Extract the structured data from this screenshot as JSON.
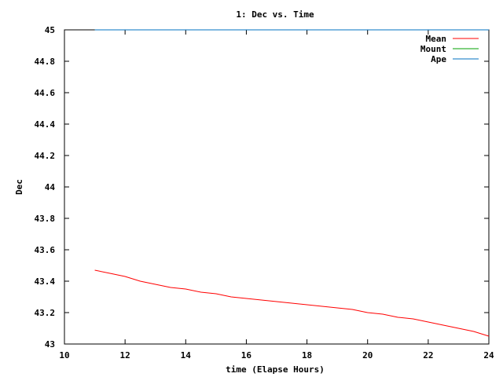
{
  "chart_data": {
    "type": "line",
    "title": "1: Dec vs. Time",
    "xlabel": "time (Elapse Hours)",
    "ylabel": "Dec",
    "xlim": [
      10,
      24
    ],
    "ylim": [
      43,
      45
    ],
    "x_ticks": [
      10,
      12,
      14,
      16,
      18,
      20,
      22,
      24
    ],
    "x_tick_labels": [
      "10",
      "12",
      "14",
      "16",
      "18",
      "20",
      "22",
      "24"
    ],
    "y_ticks": [
      43,
      43.2,
      43.4,
      43.6,
      43.8,
      44,
      44.2,
      44.4,
      44.6,
      44.8,
      45
    ],
    "y_tick_labels": [
      "43",
      "43.2",
      "43.4",
      "43.6",
      "43.8",
      "44",
      "44.2",
      "44.4",
      "44.6",
      "44.8",
      "45"
    ],
    "grid": false,
    "legend_position": "top-right",
    "series": [
      {
        "name": "Mean",
        "color": "#ff0000",
        "x": [
          11,
          11.5,
          12,
          12.5,
          13,
          13.5,
          14,
          14.5,
          15,
          15.5,
          16,
          16.5,
          17,
          17.5,
          18,
          18.5,
          19,
          19.5,
          20,
          20.5,
          21,
          21.5,
          22,
          22.5,
          23,
          23.5,
          24
        ],
        "y": [
          43.47,
          43.45,
          43.43,
          43.4,
          43.38,
          43.36,
          43.35,
          43.33,
          43.32,
          43.3,
          43.29,
          43.28,
          43.27,
          43.26,
          43.25,
          43.24,
          43.23,
          43.22,
          43.2,
          43.19,
          43.17,
          43.16,
          43.14,
          43.12,
          43.1,
          43.08,
          43.05
        ]
      },
      {
        "name": "Mount",
        "color": "#00a000",
        "x": [
          11,
          24
        ],
        "y": [
          45,
          45
        ]
      },
      {
        "name": "Ape",
        "color": "#0070c0",
        "x": [
          11,
          24
        ],
        "y": [
          45,
          45
        ]
      }
    ]
  }
}
